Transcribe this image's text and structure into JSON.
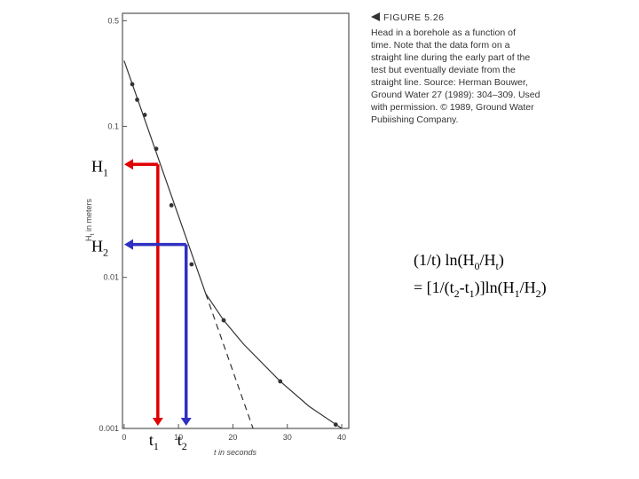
{
  "chart_data": {
    "type": "scatter",
    "log_y": true,
    "xlim": [
      -0.3,
      41.3
    ],
    "ylim": [
      0.001,
      0.56
    ],
    "xticks": [
      0,
      10,
      20,
      30,
      40
    ],
    "yticks": [
      0.001,
      0.01,
      0.1,
      0.5
    ],
    "x_label": "t in seconds",
    "y_label": [
      {
        "t": "H"
      },
      {
        "sub": "t"
      },
      {
        "t": " in meters"
      }
    ],
    "series": [
      {
        "style": "points",
        "color": "#333333",
        "x": [
          1.5,
          2.4,
          3.8,
          5.9,
          8.7,
          12.4,
          18.3,
          28.7,
          38.9
        ],
        "values": [
          0.19,
          0.15,
          0.119,
          0.071,
          0.03,
          0.0122,
          0.0052,
          0.00205,
          0.00106
        ]
      },
      {
        "style": "solid",
        "color": "#333333",
        "x": [
          0,
          15,
          18.3,
          22,
          28.7,
          34,
          40
        ],
        "values": [
          0.272,
          0.0078,
          0.0052,
          0.0036,
          0.00205,
          0.0014,
          0.001
        ]
      },
      {
        "style": "dashed",
        "color": "#333333",
        "x": [
          15,
          23.7
        ],
        "values": [
          0.0078,
          0.001
        ]
      }
    ],
    "annotations": [
      {
        "color": "#e00000",
        "t": 6.2,
        "h": 0.056,
        "h_label": [
          {
            "t": "H"
          },
          {
            "sub": "1"
          }
        ],
        "t_label": [
          {
            "t": "t"
          },
          {
            "sub": "1"
          }
        ]
      },
      {
        "color": "#3030c0",
        "t": 11.4,
        "h": 0.0165,
        "h_label": [
          {
            "t": "H"
          },
          {
            "sub": "2"
          }
        ],
        "t_label": [
          {
            "t": "t"
          },
          {
            "sub": "2"
          }
        ]
      }
    ],
    "caption": {
      "title": "FIGURE 5.26",
      "lines": [
        "Head in a borehole as a function of",
        "time. Note that the data form on a",
        "straight line during the early part of the",
        "test but eventually deviate from the",
        "straight line. Source: Herman Bouwer,",
        "Ground Water 27 (1989): 304–309. Used",
        "with permission. © 1989, Ground Water",
        "Pubiishing Company."
      ]
    },
    "formula": [
      [
        {
          "t": "(1/t) ln(H"
        },
        {
          "sub": "0"
        },
        {
          "t": "/H"
        },
        {
          "sub": "t"
        },
        {
          "t": ")"
        }
      ],
      [
        {
          "t": "= [1/(t"
        },
        {
          "sub": "2"
        },
        {
          "t": "-t"
        },
        {
          "sub": "1"
        },
        {
          "t": ")]ln(H"
        },
        {
          "sub": "1"
        },
        {
          "t": "/H"
        },
        {
          "sub": "2"
        },
        {
          "t": ")"
        }
      ]
    ]
  }
}
